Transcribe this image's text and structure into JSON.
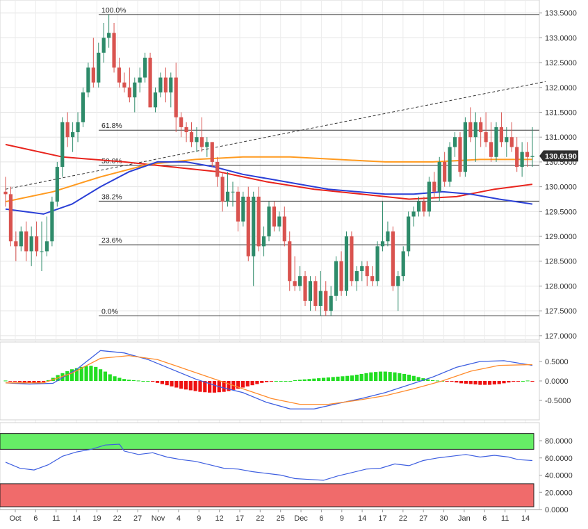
{
  "colors": {
    "up": "#2e8b6a",
    "down": "#d9534f",
    "grid": "#e3e3e3",
    "bg": "#f5f5f5",
    "sma_red": "#e8231c",
    "sma_orange": "#ff9a1f",
    "sma_blue": "#2a3fd6",
    "macd_line": "#3d5ee0",
    "signal_line": "#ff8a2a",
    "hist_pos": "#22dd22",
    "hist_neg": "#ee1111",
    "rsi_line": "#3d5ee0",
    "rsi_over": "#66ee66",
    "rsi_under": "#f06b6b",
    "price_tag": "#2f2f2f"
  },
  "current_price_label": "130.6190",
  "chart_data": [
    {
      "type": "candlestick",
      "panel": "price",
      "ylim": [
        127.0,
        133.5
      ],
      "y_ticks": [
        "127.0000",
        "127.5000",
        "128.0000",
        "128.5000",
        "129.0000",
        "129.5000",
        "130.0000",
        "130.5000",
        "131.0000",
        "131.5000",
        "132.0000",
        "132.5000",
        "133.0000",
        "133.5000"
      ],
      "x_ticks": [
        "Oct",
        "6",
        "11",
        "14",
        "19",
        "22",
        "27",
        "Nov",
        "4",
        "9",
        "12",
        "17",
        "22",
        "25",
        "Dec",
        "6",
        "9",
        "14",
        "17",
        "22",
        "27",
        "30",
        "Jan",
        "6",
        "11",
        "14"
      ],
      "fib_levels": [
        {
          "label": "100.0%",
          "value": 133.47
        },
        {
          "label": "61.8%",
          "value": 131.14
        },
        {
          "label": "50.0%",
          "value": 130.43
        },
        {
          "label": "38.2%",
          "value": 129.71
        },
        {
          "label": "23.6%",
          "value": 128.83
        },
        {
          "label": "0.0%",
          "value": 127.4
        }
      ],
      "trendline": {
        "start": [
          0,
          129.95
        ],
        "end": [
          111,
          132.12
        ]
      },
      "candles": [
        [
          129.9,
          130.2,
          129.6,
          129.85
        ],
        [
          129.85,
          130.0,
          128.8,
          128.9
        ],
        [
          128.9,
          129.1,
          128.5,
          128.8
        ],
        [
          128.8,
          129.2,
          128.7,
          129.1
        ],
        [
          129.1,
          129.3,
          128.5,
          128.7
        ],
        [
          128.7,
          129.2,
          128.4,
          129.0
        ],
        [
          129.0,
          129.3,
          128.6,
          128.7
        ],
        [
          128.7,
          129.3,
          128.3,
          128.7
        ],
        [
          128.7,
          129.4,
          128.6,
          128.9
        ],
        [
          128.9,
          129.8,
          128.8,
          129.7
        ],
        [
          129.7,
          130.5,
          129.6,
          130.4
        ],
        [
          130.4,
          131.4,
          130.2,
          131.3
        ],
        [
          131.3,
          131.5,
          130.8,
          131.0
        ],
        [
          131.0,
          131.3,
          130.7,
          131.1
        ],
        [
          131.1,
          131.5,
          130.9,
          131.3
        ],
        [
          131.3,
          132.0,
          131.2,
          131.9
        ],
        [
          131.9,
          132.5,
          131.8,
          132.4
        ],
        [
          132.4,
          133.0,
          132.0,
          132.1
        ],
        [
          132.1,
          132.9,
          132.0,
          132.7
        ],
        [
          132.7,
          133.3,
          132.5,
          133.0
        ],
        [
          133.0,
          133.47,
          132.8,
          133.1
        ],
        [
          133.1,
          133.3,
          132.3,
          132.4
        ],
        [
          132.4,
          132.6,
          132.0,
          132.1
        ],
        [
          132.1,
          132.3,
          131.9,
          132.0
        ],
        [
          132.0,
          132.4,
          131.7,
          131.8
        ],
        [
          131.8,
          132.2,
          131.5,
          132.1
        ],
        [
          132.1,
          132.4,
          131.9,
          132.2
        ],
        [
          132.2,
          132.7,
          132.1,
          132.6
        ],
        [
          132.6,
          132.7,
          131.6,
          131.6
        ],
        [
          131.6,
          132.0,
          131.5,
          131.9
        ],
        [
          131.9,
          132.3,
          131.8,
          132.2
        ],
        [
          132.2,
          132.4,
          131.7,
          131.9
        ],
        [
          131.9,
          132.3,
          131.6,
          132.2
        ],
        [
          132.2,
          132.5,
          131.1,
          131.4
        ],
        [
          131.4,
          131.5,
          131.0,
          131.2
        ],
        [
          131.2,
          131.3,
          130.9,
          131.1
        ],
        [
          131.1,
          131.3,
          130.8,
          130.9
        ],
        [
          130.9,
          131.2,
          130.7,
          131.0
        ],
        [
          131.0,
          131.4,
          130.7,
          130.8
        ],
        [
          130.8,
          131.0,
          130.6,
          130.9
        ],
        [
          130.9,
          130.9,
          130.4,
          130.5
        ],
        [
          130.5,
          130.6,
          130.0,
          130.2
        ],
        [
          130.2,
          130.3,
          129.5,
          129.7
        ],
        [
          129.7,
          130.3,
          129.6,
          129.9
        ],
        [
          129.9,
          130.1,
          129.6,
          129.9
        ],
        [
          129.9,
          130.0,
          129.1,
          129.3
        ],
        [
          129.3,
          129.9,
          129.2,
          129.8
        ],
        [
          129.8,
          130.0,
          128.5,
          128.6
        ],
        [
          128.6,
          129.9,
          128.0,
          129.8
        ],
        [
          129.8,
          130.0,
          128.7,
          128.8
        ],
        [
          128.8,
          129.2,
          128.6,
          129.0
        ],
        [
          129.0,
          129.7,
          128.9,
          129.6
        ],
        [
          129.6,
          129.7,
          129.1,
          129.2
        ],
        [
          129.2,
          129.5,
          129.1,
          129.4
        ],
        [
          129.4,
          129.6,
          128.8,
          128.9
        ],
        [
          128.9,
          129.1,
          127.9,
          128.1
        ],
        [
          128.1,
          128.6,
          127.9,
          128.0
        ],
        [
          128.0,
          128.4,
          127.9,
          128.2
        ],
        [
          128.2,
          128.3,
          127.6,
          127.7
        ],
        [
          127.7,
          128.2,
          127.5,
          128.1
        ],
        [
          128.1,
          128.2,
          127.5,
          127.6
        ],
        [
          127.6,
          128.3,
          127.4,
          127.9
        ],
        [
          127.9,
          128.1,
          127.4,
          127.5
        ],
        [
          127.5,
          128.0,
          127.4,
          127.8
        ],
        [
          127.8,
          128.6,
          127.7,
          128.5
        ],
        [
          128.5,
          128.7,
          127.8,
          127.9
        ],
        [
          127.9,
          129.1,
          127.8,
          129.0
        ],
        [
          129.0,
          129.1,
          128.0,
          128.1
        ],
        [
          128.1,
          128.4,
          127.9,
          128.3
        ],
        [
          128.3,
          128.5,
          128.1,
          128.4
        ],
        [
          128.4,
          128.5,
          128.0,
          128.2
        ],
        [
          128.2,
          128.4,
          128.0,
          128.1
        ],
        [
          128.1,
          128.9,
          128.0,
          128.8
        ],
        [
          128.8,
          129.7,
          128.7,
          128.9
        ],
        [
          128.9,
          129.3,
          128.8,
          129.1
        ],
        [
          129.1,
          129.2,
          127.9,
          128.0
        ],
        [
          128.0,
          128.3,
          127.5,
          128.2
        ],
        [
          128.2,
          128.8,
          128.1,
          128.7
        ],
        [
          128.7,
          129.5,
          128.6,
          129.4
        ],
        [
          129.4,
          129.6,
          129.2,
          129.5
        ],
        [
          129.5,
          129.8,
          129.4,
          129.7
        ],
        [
          129.7,
          129.8,
          129.4,
          129.5
        ],
        [
          129.5,
          130.2,
          129.4,
          130.1
        ],
        [
          130.1,
          130.3,
          129.8,
          129.9
        ],
        [
          129.9,
          130.6,
          129.7,
          130.5
        ],
        [
          130.5,
          130.7,
          130.0,
          130.1
        ],
        [
          130.1,
          130.9,
          130.0,
          130.8
        ],
        [
          130.8,
          131.1,
          130.6,
          131.0
        ],
        [
          131.0,
          131.1,
          130.2,
          130.3
        ],
        [
          130.3,
          131.4,
          130.2,
          131.3
        ],
        [
          131.3,
          131.6,
          130.9,
          131.0
        ],
        [
          131.0,
          131.5,
          130.5,
          131.3
        ],
        [
          131.3,
          131.4,
          130.8,
          131.1
        ],
        [
          131.1,
          131.5,
          130.8,
          130.9
        ],
        [
          130.9,
          131.3,
          130.5,
          130.6
        ],
        [
          130.6,
          131.3,
          130.5,
          131.2
        ],
        [
          131.2,
          131.5,
          130.8,
          130.9
        ],
        [
          130.9,
          131.2,
          130.6,
          131.0
        ],
        [
          131.0,
          131.3,
          130.7,
          130.8
        ],
        [
          130.8,
          131.0,
          130.3,
          130.4
        ],
        [
          130.4,
          130.9,
          130.2,
          130.7
        ],
        [
          130.7,
          130.9,
          130.4,
          130.6
        ],
        [
          130.6,
          131.2,
          130.4,
          130.62
        ]
      ],
      "sma_red": [
        [
          0,
          130.85
        ],
        [
          12,
          130.6
        ],
        [
          25,
          130.5
        ],
        [
          35,
          130.4
        ],
        [
          45,
          130.3
        ],
        [
          55,
          130.1
        ],
        [
          65,
          129.95
        ],
        [
          75,
          129.85
        ],
        [
          85,
          129.75
        ],
        [
          95,
          129.8
        ],
        [
          103,
          129.95
        ],
        [
          111,
          130.05
        ]
      ],
      "sma_orange": [
        [
          0,
          129.7
        ],
        [
          10,
          129.9
        ],
        [
          20,
          130.2
        ],
        [
          30,
          130.45
        ],
        [
          40,
          130.55
        ],
        [
          50,
          130.6
        ],
        [
          60,
          130.6
        ],
        [
          70,
          130.55
        ],
        [
          80,
          130.5
        ],
        [
          90,
          130.5
        ],
        [
          100,
          130.55
        ],
        [
          111,
          130.55
        ]
      ],
      "sma_blue": [
        [
          0,
          129.55
        ],
        [
          8,
          129.45
        ],
        [
          14,
          129.65
        ],
        [
          20,
          130.0
        ],
        [
          26,
          130.3
        ],
        [
          32,
          130.5
        ],
        [
          38,
          130.5
        ],
        [
          44,
          130.4
        ],
        [
          50,
          130.25
        ],
        [
          56,
          130.15
        ],
        [
          62,
          130.05
        ],
        [
          68,
          129.95
        ],
        [
          74,
          129.9
        ],
        [
          80,
          129.85
        ],
        [
          86,
          129.85
        ],
        [
          92,
          129.9
        ],
        [
          98,
          129.85
        ],
        [
          104,
          129.75
        ],
        [
          111,
          129.65
        ]
      ]
    },
    {
      "type": "macd",
      "panel": "macd",
      "ylim": [
        -0.85,
        0.85
      ],
      "y_ticks": [
        "-0.5000",
        "0.0000",
        "0.5000"
      ],
      "macd": [
        [
          0,
          -0.05
        ],
        [
          5,
          -0.08
        ],
        [
          10,
          -0.06
        ],
        [
          15,
          0.3
        ],
        [
          20,
          0.78
        ],
        [
          25,
          0.72
        ],
        [
          30,
          0.55
        ],
        [
          35,
          0.3
        ],
        [
          40,
          0.05
        ],
        [
          45,
          -0.15
        ],
        [
          50,
          -0.3
        ],
        [
          55,
          -0.55
        ],
        [
          60,
          -0.72
        ],
        [
          65,
          -0.72
        ],
        [
          70,
          -0.58
        ],
        [
          75,
          -0.45
        ],
        [
          80,
          -0.3
        ],
        [
          85,
          -0.1
        ],
        [
          90,
          0.1
        ],
        [
          95,
          0.35
        ],
        [
          100,
          0.5
        ],
        [
          105,
          0.52
        ],
        [
          111,
          0.4
        ]
      ],
      "signal": [
        [
          0,
          -0.05
        ],
        [
          8,
          -0.05
        ],
        [
          14,
          0.2
        ],
        [
          20,
          0.58
        ],
        [
          26,
          0.65
        ],
        [
          32,
          0.55
        ],
        [
          38,
          0.3
        ],
        [
          44,
          0.05
        ],
        [
          50,
          -0.2
        ],
        [
          56,
          -0.45
        ],
        [
          62,
          -0.6
        ],
        [
          68,
          -0.6
        ],
        [
          74,
          -0.5
        ],
        [
          80,
          -0.38
        ],
        [
          86,
          -0.2
        ],
        [
          92,
          0.0
        ],
        [
          98,
          0.25
        ],
        [
          104,
          0.4
        ],
        [
          111,
          0.42
        ]
      ],
      "histogram": [
        0.01,
        -0.01,
        -0.02,
        -0.03,
        -0.04,
        -0.05,
        -0.05,
        -0.04,
        -0.03,
        0.02,
        0.08,
        0.15,
        0.2,
        0.25,
        0.3,
        0.33,
        0.36,
        0.38,
        0.39,
        0.36,
        0.3,
        0.24,
        0.17,
        0.12,
        0.08,
        0.05,
        0.03,
        0.02,
        0.01,
        0.0,
        0.0,
        -0.02,
        -0.05,
        -0.08,
        -0.11,
        -0.14,
        -0.17,
        -0.2,
        -0.22,
        -0.24,
        -0.26,
        -0.28,
        -0.29,
        -0.3,
        -0.3,
        -0.29,
        -0.28,
        -0.26,
        -0.23,
        -0.2,
        -0.17,
        -0.14,
        -0.11,
        -0.08,
        -0.05,
        -0.03,
        -0.01,
        0.0,
        0.0,
        0.0,
        0.0,
        0.02,
        0.03,
        0.04,
        0.05,
        0.06,
        0.07,
        0.08,
        0.09,
        0.1,
        0.11,
        0.12,
        0.13,
        0.14,
        0.16,
        0.18,
        0.2,
        0.22,
        0.23,
        0.24,
        0.24,
        0.23,
        0.22,
        0.2,
        0.18,
        0.16,
        0.13,
        0.1,
        0.07,
        0.04,
        0.02,
        0.01,
        0.0,
        -0.01,
        -0.02,
        -0.04,
        -0.06,
        -0.07,
        -0.08,
        -0.09,
        -0.1,
        -0.1,
        -0.1,
        -0.09,
        -0.08,
        -0.06,
        -0.04,
        -0.02,
        -0.01,
        0.0,
        0.01,
        -0.02
      ],
      "hist_start": 0
    },
    {
      "type": "rsi",
      "panel": "rsi",
      "ylim": [
        0,
        90
      ],
      "y_ticks": [
        "0.0000",
        "20.0000",
        "40.0000",
        "60.0000",
        "80.0000"
      ],
      "overbought": 70,
      "oversold": 30,
      "rsi": [
        [
          0,
          55
        ],
        [
          3,
          48
        ],
        [
          6,
          46
        ],
        [
          9,
          52
        ],
        [
          12,
          62
        ],
        [
          15,
          67
        ],
        [
          18,
          70
        ],
        [
          21,
          75
        ],
        [
          24,
          76
        ],
        [
          25,
          68
        ],
        [
          28,
          64
        ],
        [
          31,
          66
        ],
        [
          34,
          61
        ],
        [
          37,
          58
        ],
        [
          40,
          56
        ],
        [
          43,
          52
        ],
        [
          46,
          48
        ],
        [
          49,
          47
        ],
        [
          52,
          44
        ],
        [
          55,
          42
        ],
        [
          58,
          40
        ],
        [
          61,
          36
        ],
        [
          64,
          35
        ],
        [
          67,
          34
        ],
        [
          70,
          39
        ],
        [
          73,
          43
        ],
        [
          76,
          47
        ],
        [
          79,
          48
        ],
        [
          82,
          53
        ],
        [
          85,
          51
        ],
        [
          88,
          57
        ],
        [
          91,
          60
        ],
        [
          94,
          62
        ],
        [
          97,
          64
        ],
        [
          100,
          61
        ],
        [
          103,
          63
        ],
        [
          106,
          61
        ],
        [
          108,
          58
        ],
        [
          111,
          57
        ]
      ]
    }
  ]
}
